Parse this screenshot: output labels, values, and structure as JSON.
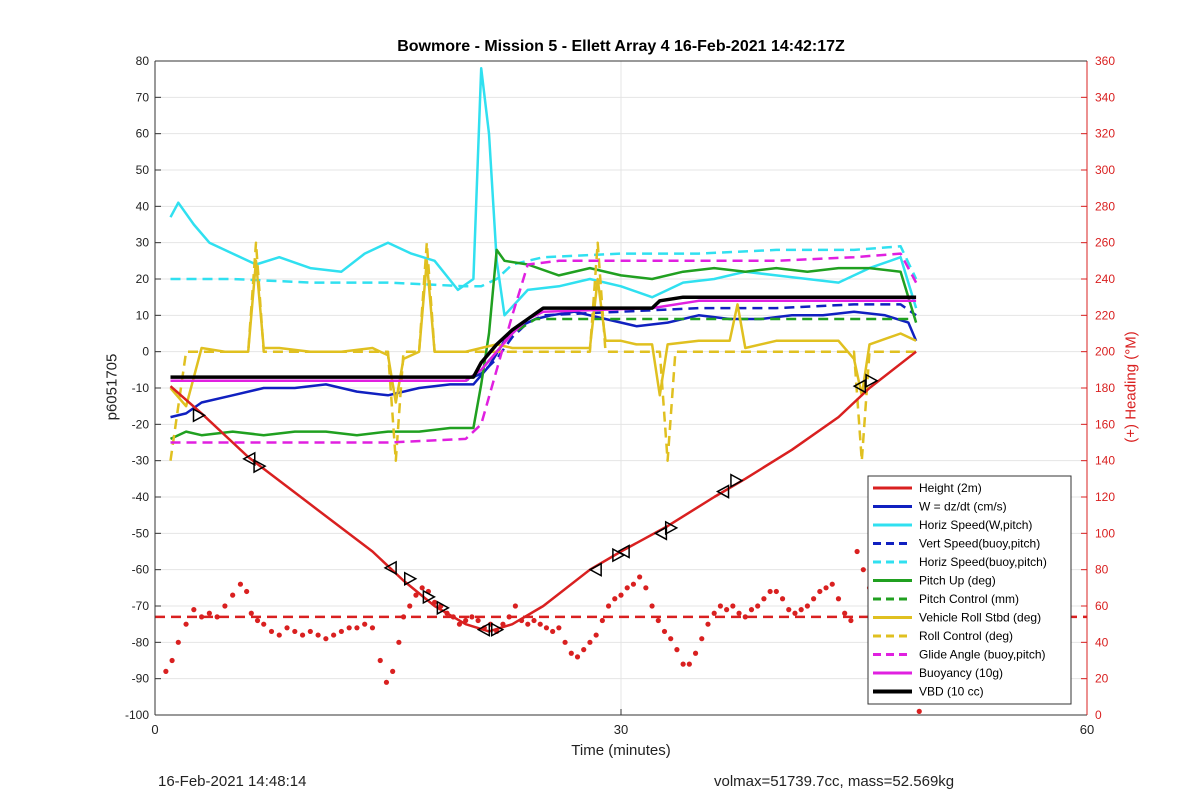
{
  "chart_data": {
    "type": "line",
    "title": "Bowmore - Mission 5 - Ellett Array 4 16-Feb-2021 14:42:17Z",
    "xlabel": "Time (minutes)",
    "ylabel": "p6051705",
    "ylabel_right": "(+) Heading (°M)",
    "xlim": [
      0,
      60
    ],
    "ylim": [
      -100,
      80
    ],
    "ylim_right": [
      0,
      360
    ],
    "x_ticks": [
      0,
      30,
      60
    ],
    "y_ticks": [
      -100,
      -90,
      -80,
      -70,
      -60,
      -50,
      -40,
      -30,
      -20,
      -10,
      0,
      10,
      20,
      30,
      40,
      50,
      60,
      70,
      80
    ],
    "y_ticks_right": [
      0,
      20,
      40,
      60,
      80,
      100,
      120,
      140,
      160,
      180,
      200,
      220,
      240,
      260,
      280,
      300,
      320,
      340,
      360
    ],
    "grid": true,
    "legend_position": "bottom-right",
    "colors": {
      "red": "#d92020",
      "blue": "#1020c0",
      "cyan": "#30e0f0",
      "green": "#20a020",
      "yellow": "#e0c020",
      "magenta": "#e020e0",
      "black": "#000000"
    },
    "series": [
      {
        "name": "Height (2m)",
        "color": "#d92020",
        "dash": "solid",
        "width": 2,
        "x": [
          1.0,
          3.0,
          6.0,
          10.0,
          14.0,
          16.0,
          18.0,
          20.0,
          21.5,
          23.0,
          25.0,
          28.0,
          30.0,
          33.0,
          36.0,
          38.0,
          41.0,
          44.0,
          46.0,
          49.0
        ],
        "y": [
          -9.5,
          -17,
          -29,
          -42,
          -55,
          -63,
          -70,
          -75,
          -77,
          -75,
          -70,
          -60,
          -55,
          -48,
          -40,
          -35,
          -27,
          -18,
          -10,
          0
        ]
      },
      {
        "name": "W = dz/dt (cm/s)",
        "color": "#1020c0",
        "dash": "solid",
        "width": 2,
        "x": [
          1.0,
          2.0,
          3.0,
          5.0,
          7.0,
          9.0,
          11.0,
          13.0,
          15.0,
          17.0,
          19.0,
          20.5,
          21.5,
          22.5,
          23.5,
          24.5,
          25.5,
          27.0,
          29.0,
          31.0,
          33.0,
          35.0,
          37.0,
          39.0,
          41.0,
          43.0,
          45.0,
          47.0,
          48.5,
          49.0
        ],
        "y": [
          -18,
          -17,
          -14,
          -12,
          -10,
          -10,
          -9,
          -11,
          -12,
          -10,
          -9,
          -9,
          -4,
          3,
          7,
          9,
          10,
          11,
          9,
          7,
          8,
          10,
          9,
          9,
          10,
          10,
          11,
          10,
          8,
          3
        ]
      },
      {
        "name": "Horiz Speed(W,pitch)",
        "color": "#30e0f0",
        "dash": "solid",
        "width": 2,
        "x": [
          1.0,
          1.5,
          2.5,
          3.5,
          5.0,
          6.5,
          8.0,
          10.0,
          12.0,
          13.5,
          15.0,
          16.5,
          18.0,
          19.5,
          20.5,
          21.0,
          21.5,
          22.0,
          22.5,
          24.0,
          26.0,
          28.0,
          30.0,
          32.0,
          34.0,
          36.0,
          38.0,
          40.0,
          42.0,
          44.0,
          46.0,
          48.0,
          49.0
        ],
        "y": [
          37,
          41,
          35,
          30,
          27,
          24,
          26,
          23,
          22,
          27,
          30,
          27,
          25,
          17,
          20,
          78,
          60,
          25,
          10,
          17,
          18,
          20,
          18,
          15,
          19,
          20,
          22,
          21,
          20,
          19,
          23,
          26,
          12
        ]
      },
      {
        "name": "Vert Speed(buoy,pitch)",
        "color": "#1020c0",
        "dash": "dashed",
        "width": 2,
        "x": [
          1.0,
          5.0,
          10.0,
          15.0,
          20.0,
          21.0,
          22.0,
          23.0,
          24.0,
          25.0,
          30.0,
          35.0,
          40.0,
          45.0,
          48.0,
          49.0
        ],
        "y": [
          -8,
          -8,
          -8,
          -8,
          -8,
          -6,
          -2,
          4,
          8,
          10,
          11,
          12,
          12,
          13,
          13,
          10
        ]
      },
      {
        "name": "Horiz Speed(buoy,pitch)",
        "color": "#30e0f0",
        "dash": "dashed",
        "width": 2,
        "x": [
          1.0,
          5.0,
          10.0,
          15.0,
          20.0,
          21.0,
          22.0,
          23.0,
          25.0,
          30.0,
          35.0,
          40.0,
          45.0,
          48.0,
          49.0
        ],
        "y": [
          20,
          20,
          19,
          19,
          18,
          18,
          20,
          24,
          26,
          27,
          27,
          28,
          28,
          29,
          20
        ]
      },
      {
        "name": "Pitch Up (deg)",
        "color": "#20a020",
        "dash": "solid",
        "width": 2,
        "x": [
          1.0,
          2.0,
          3.0,
          5.0,
          7.0,
          9.0,
          11.0,
          13.0,
          15.0,
          17.0,
          19.0,
          20.5,
          21.0,
          21.5,
          22.0,
          22.5,
          24.0,
          26.0,
          28.0,
          30.0,
          32.0,
          34.0,
          36.0,
          38.0,
          40.0,
          42.0,
          44.0,
          46.0,
          48.0,
          49.0
        ],
        "y": [
          -24,
          -22,
          -23,
          -22,
          -23,
          -22,
          -22,
          -23,
          -22,
          -22,
          -21,
          -21,
          -9,
          5,
          28,
          25,
          24,
          21,
          23,
          21,
          20,
          22,
          23,
          22,
          23,
          22,
          23,
          23,
          22,
          8
        ]
      },
      {
        "name": "Pitch Control (mm)",
        "color": "#20a020",
        "dash": "dashed",
        "width": 2,
        "x": [
          1.0,
          10.0,
          20.0,
          21.0,
          22.0,
          23.0,
          24.5,
          30.0,
          40.0,
          48.0,
          49.0
        ],
        "y": [
          -8,
          -8,
          -8,
          -5,
          0,
          5,
          9,
          9,
          9,
          9,
          9
        ]
      },
      {
        "name": "Vehicle Roll Stbd (deg)",
        "color": "#e0c020",
        "dash": "solid",
        "width": 2,
        "x": [
          1.0,
          2.0,
          3.0,
          4.5,
          6.0,
          6.5,
          7.0,
          8.0,
          10.0,
          12.0,
          14.0,
          15.0,
          15.5,
          16.0,
          17.0,
          17.5,
          18.0,
          20.0,
          21.0,
          22.0,
          23.0,
          25.0,
          28.0,
          28.5,
          29.0,
          30.0,
          31.0,
          32.0,
          32.5,
          33.0,
          35.0,
          37.0,
          37.5,
          38.0,
          40.0,
          44.0,
          45.0,
          45.5,
          46.0,
          48.0,
          49.0
        ],
        "y": [
          -10,
          -15,
          1,
          0,
          0,
          25,
          1,
          1,
          0,
          0,
          1,
          -1,
          -14,
          -2,
          0,
          25,
          0,
          0,
          1,
          2,
          1,
          1,
          1,
          20,
          3,
          3,
          2,
          2,
          -12,
          2,
          3,
          3,
          13,
          1,
          3,
          3,
          -2,
          -12,
          2,
          5,
          3
        ]
      },
      {
        "name": "Roll Control (deg)",
        "color": "#e0c020",
        "dash": "dashed",
        "width": 2,
        "x": [
          1.0,
          2.0,
          6.0,
          6.5,
          7.0,
          15.0,
          15.5,
          16.0,
          17.0,
          17.5,
          18.0,
          28.0,
          28.5,
          29.0,
          32.5,
          33.0,
          33.5,
          45.0,
          45.5,
          46.0,
          49.0
        ],
        "y": [
          -30,
          0,
          0,
          30,
          0,
          0,
          -30,
          0,
          0,
          30,
          0,
          0,
          30,
          0,
          0,
          -30,
          0,
          0,
          -30,
          0,
          0
        ]
      },
      {
        "name": "Glide Angle (buoy,pitch)",
        "color": "#e020e0",
        "dash": "dashed",
        "width": 2,
        "x": [
          1.0,
          5.0,
          10.0,
          15.0,
          20.0,
          21.0,
          22.0,
          23.0,
          24.0,
          26.0,
          30.0,
          35.0,
          40.0,
          45.0,
          48.0,
          49.0
        ],
        "y": [
          -25,
          -25,
          -25,
          -25,
          -24,
          -20,
          -5,
          10,
          24,
          25,
          25,
          25,
          25,
          26,
          27,
          19
        ]
      },
      {
        "name": "Buoyancy (10g)",
        "color": "#e020e0",
        "dash": "solid",
        "width": 2,
        "x": [
          1.0,
          20.0,
          21.0,
          22.0,
          23.0,
          24.0,
          25.0,
          32.0,
          35.0,
          49.0
        ],
        "y": [
          -8,
          -8,
          -5,
          0,
          5,
          9,
          11,
          12,
          14,
          14
        ]
      },
      {
        "name": "VBD (10 cc)",
        "color": "#000000",
        "dash": "solid",
        "width": 3,
        "x": [
          1.0,
          20.5,
          21.0,
          22.0,
          23.0,
          24.0,
          25.0,
          32.0,
          32.5,
          34.0,
          49.0
        ],
        "y": [
          -7,
          -7,
          -3,
          2,
          6,
          9,
          12,
          12,
          14,
          15,
          15
        ]
      }
    ],
    "reference_line": {
      "color": "#d92020",
      "y": -73
    },
    "heading_points": {
      "color": "#d92020",
      "x": [
        0.7,
        1.1,
        1.5,
        2.0,
        2.5,
        3.0,
        3.5,
        4.0,
        4.5,
        5.0,
        5.5,
        5.9,
        6.2,
        6.6,
        7.0,
        7.5,
        8.0,
        8.5,
        9.0,
        9.5,
        10.0,
        10.5,
        11.0,
        11.5,
        12.0,
        12.5,
        13.0,
        13.5,
        14.0,
        14.5,
        14.9,
        15.3,
        15.7,
        16.0,
        16.4,
        16.8,
        17.2,
        17.6,
        18.0,
        18.4,
        18.8,
        19.2,
        19.6,
        20.0,
        20.4,
        20.8,
        21.2,
        21.6,
        22.0,
        22.4,
        22.8,
        23.2,
        23.6,
        24.0,
        24.4,
        24.8,
        25.2,
        25.6,
        26.0,
        26.4,
        26.8,
        27.2,
        27.6,
        28.0,
        28.4,
        28.8,
        29.2,
        29.6,
        30.0,
        30.4,
        30.8,
        31.2,
        31.6,
        32.0,
        32.4,
        32.8,
        33.2,
        33.6,
        34.0,
        34.4,
        34.8,
        35.2,
        35.6,
        36.0,
        36.4,
        36.8,
        37.2,
        37.6,
        38.0,
        38.4,
        38.8,
        39.2,
        39.6,
        40.0,
        40.4,
        40.8,
        41.2,
        41.6,
        42.0,
        42.4,
        42.8,
        43.2,
        43.6,
        44.0,
        44.4,
        44.8,
        45.2,
        45.6,
        46.0,
        46.4,
        46.8,
        47.2,
        47.6,
        48.0,
        48.4,
        48.8,
        49.2
      ],
      "y": [
        -88,
        -85,
        -80,
        -75,
        -71,
        -73,
        -72,
        -73,
        -70,
        -67,
        -64,
        -66,
        -72,
        -74,
        -75,
        -77,
        -78,
        -76,
        -77,
        -78,
        -77,
        -78,
        -79,
        -78,
        -77,
        -76,
        -76,
        -75,
        -76,
        -85,
        -91,
        -88,
        -80,
        -73,
        -70,
        -67,
        -65,
        -66,
        -69,
        -70,
        -72,
        -73,
        -75,
        -74,
        -73,
        -74,
        -76,
        -75,
        -77,
        -75,
        -73,
        -70,
        -74,
        -75,
        -74,
        -75,
        -76,
        -77,
        -76,
        -80,
        -83,
        -84,
        -82,
        -80,
        -78,
        -74,
        -70,
        -68,
        -67,
        -65,
        -64,
        -62,
        -65,
        -70,
        -74,
        -77,
        -79,
        -82,
        -86,
        -86,
        -83,
        -79,
        -75,
        -72,
        -70,
        -71,
        -70,
        -72,
        -73,
        -71,
        -70,
        -68,
        -66,
        -66,
        -68,
        -71,
        -72,
        -71,
        -70,
        -68,
        -66,
        -65,
        -64,
        -68,
        -72,
        -74,
        -55,
        -60,
        -65,
        -70,
        -72,
        -75,
        -72,
        -70,
        -68,
        -67,
        -99
      ]
    },
    "direction_markers": [
      {
        "x": 2.8,
        "y": -17.5,
        "dir": "right"
      },
      {
        "x": 6.1,
        "y": -29.5,
        "dir": "left"
      },
      {
        "x": 6.7,
        "y": -31.5,
        "dir": "right"
      },
      {
        "x": 15.2,
        "y": -59.5,
        "dir": "left"
      },
      {
        "x": 16.4,
        "y": -62.5,
        "dir": "right"
      },
      {
        "x": 17.6,
        "y": -67.5,
        "dir": "right"
      },
      {
        "x": 18.5,
        "y": -70.5,
        "dir": "right"
      },
      {
        "x": 21.2,
        "y": -76.5,
        "dir": "left"
      },
      {
        "x": 22.0,
        "y": -76.5,
        "dir": "right"
      },
      {
        "x": 28.4,
        "y": -60.0,
        "dir": "left"
      },
      {
        "x": 29.8,
        "y": -56.0,
        "dir": "right"
      },
      {
        "x": 30.2,
        "y": -55.0,
        "dir": "left"
      },
      {
        "x": 32.6,
        "y": -50.0,
        "dir": "left"
      },
      {
        "x": 33.2,
        "y": -48.5,
        "dir": "right"
      },
      {
        "x": 36.6,
        "y": -38.5,
        "dir": "left"
      },
      {
        "x": 37.4,
        "y": -35.5,
        "dir": "right"
      },
      {
        "x": 45.4,
        "y": -9.5,
        "dir": "left"
      },
      {
        "x": 46.1,
        "y": -8.0,
        "dir": "right"
      }
    ]
  },
  "footer": {
    "left": "16-Feb-2021 14:48:14",
    "right": "volmax=51739.7cc, mass=52.569kg"
  }
}
